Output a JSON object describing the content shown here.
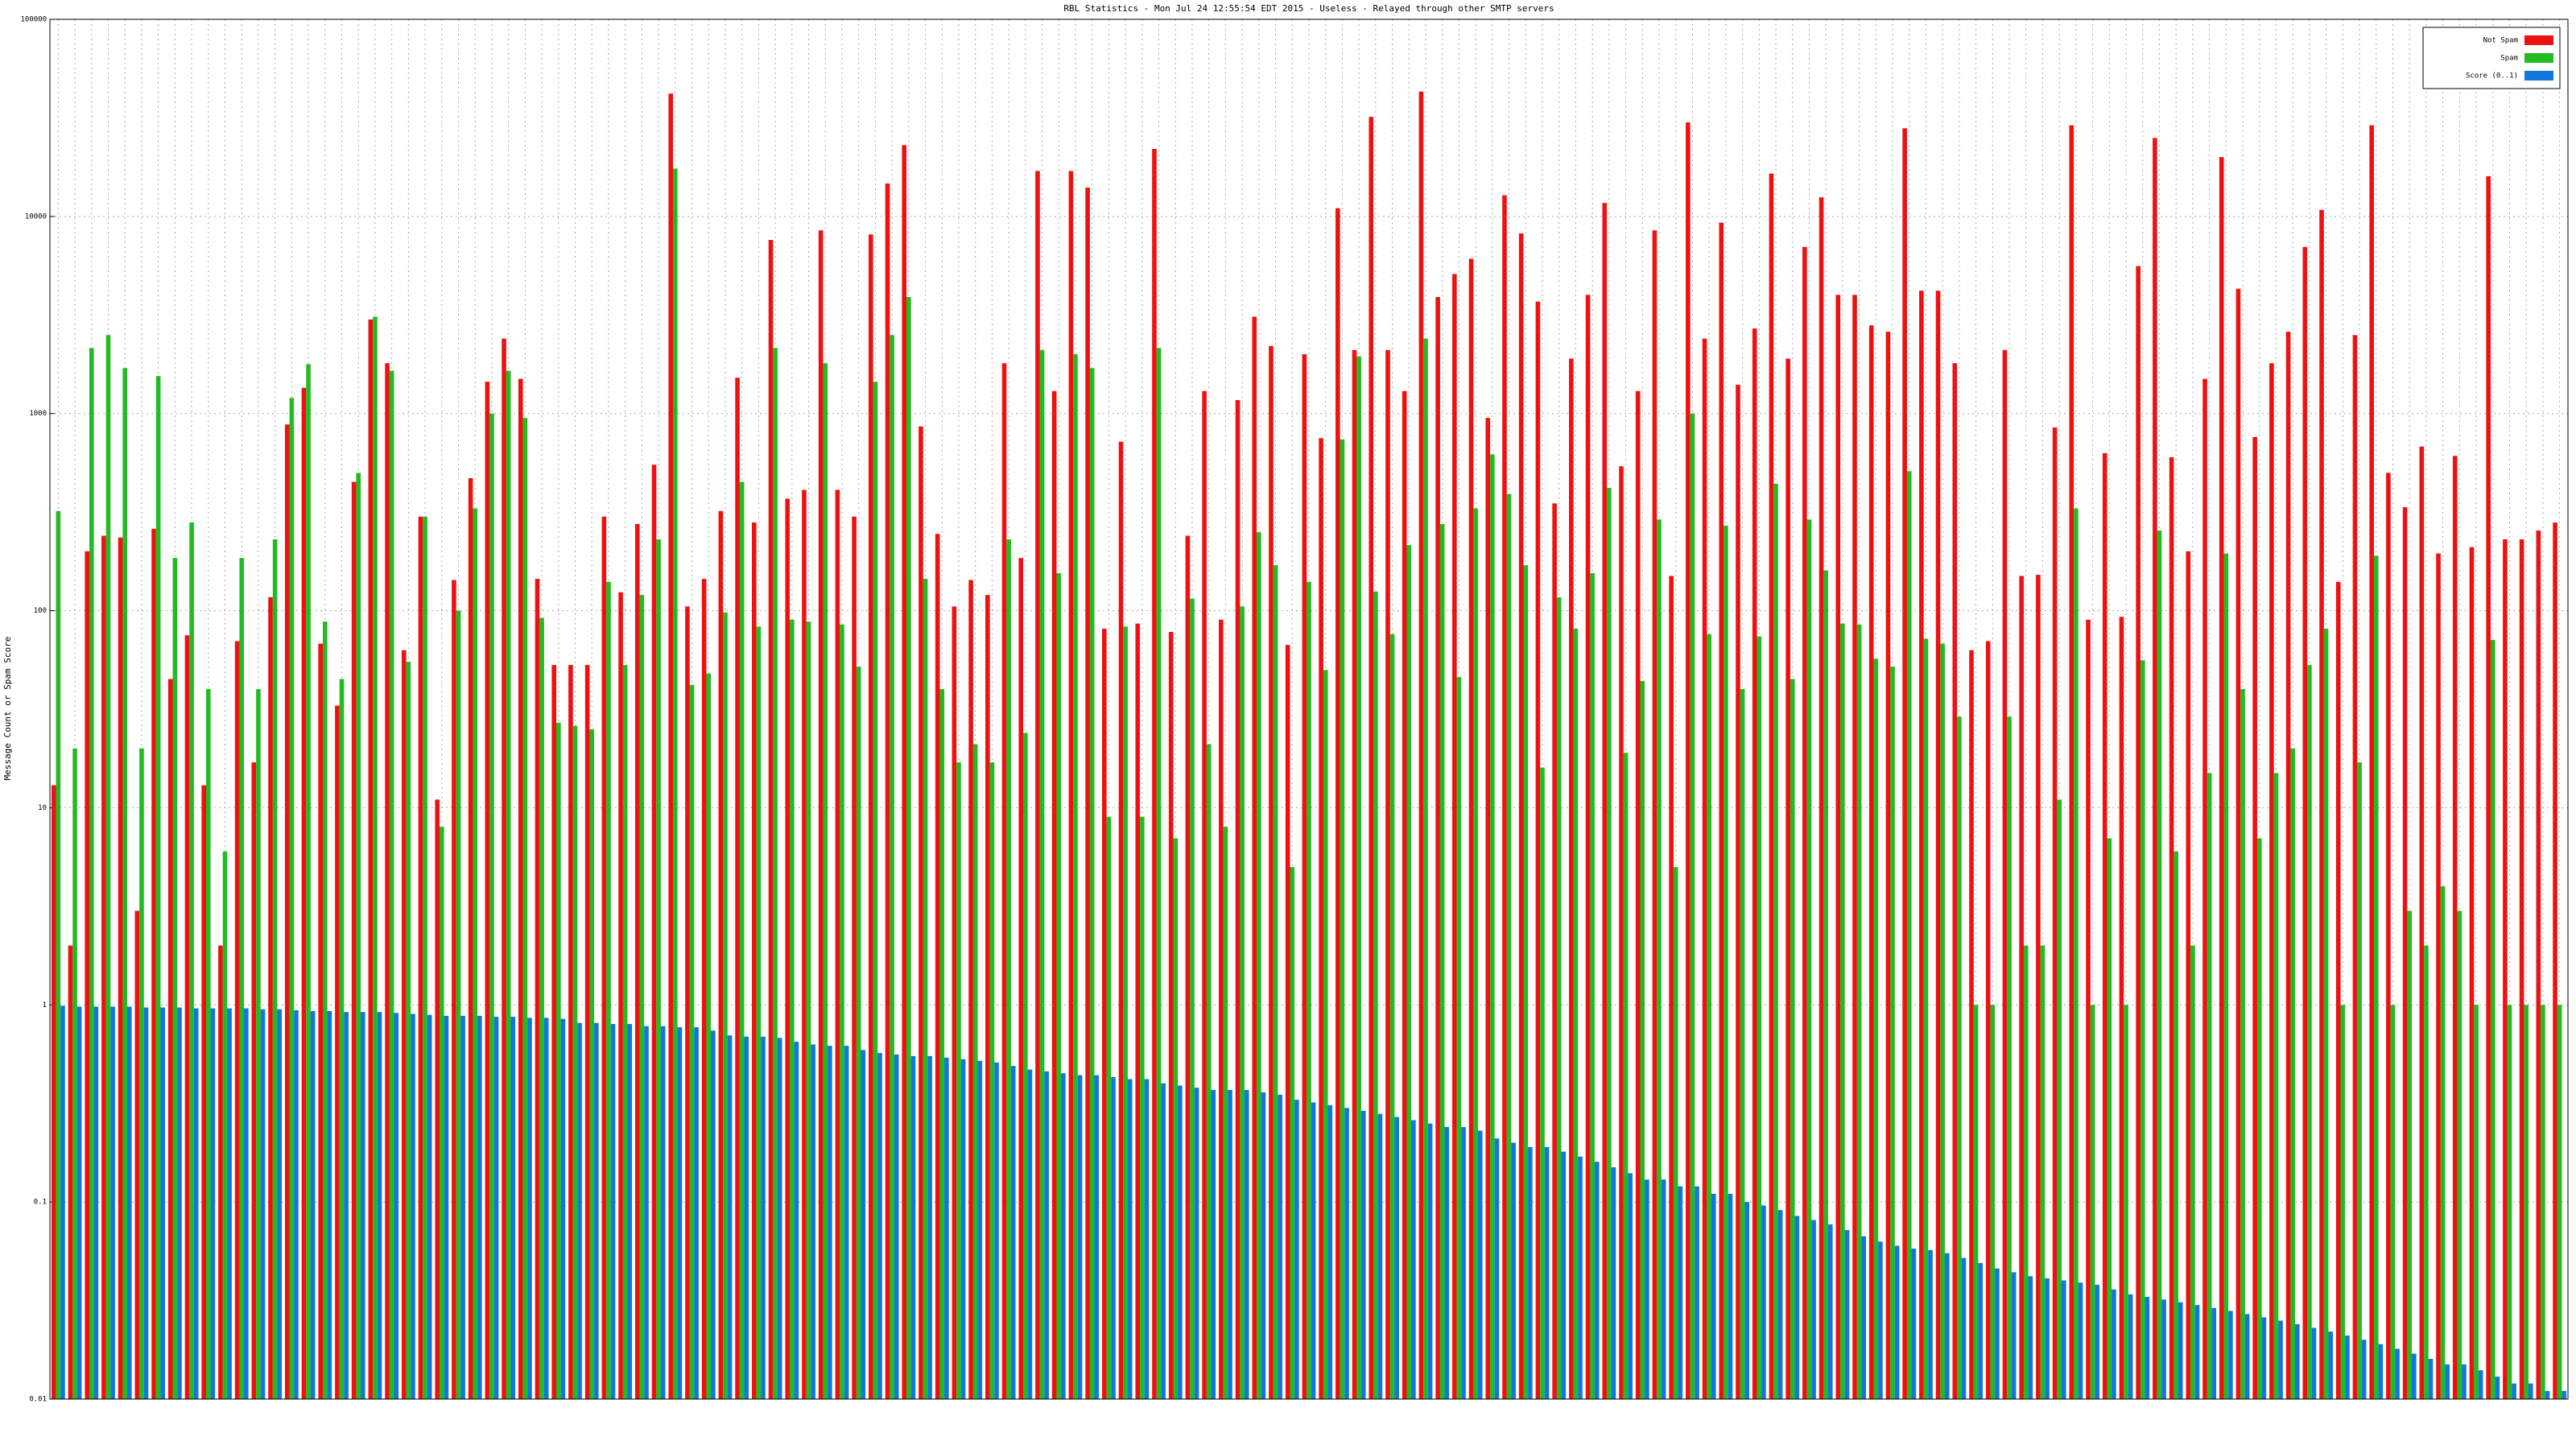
{
  "chart_data": {
    "type": "bar",
    "title": "RBL Statistics - Mon Jul 24 12:55:54 EDT 2015 - Useless - Relayed through other SMTP servers",
    "y_label": "Message Count or Spam Score",
    "log_scale": true,
    "grid": true,
    "legend": "upper right",
    "ylim": [
      0.01,
      100000
    ],
    "yticks": [
      0.01,
      0.1,
      1,
      10,
      100,
      1000,
      10000,
      100000
    ],
    "categories": [
      null,
      null,
      null,
      null,
      null,
      null,
      null,
      null,
      null,
      null,
      null,
      null,
      null,
      null,
      null,
      null,
      null,
      null,
      null,
      null,
      null,
      null,
      null,
      null,
      null,
      null,
      null,
      null,
      null,
      null,
      null,
      null,
      null,
      null,
      null,
      null,
      null,
      null,
      null,
      null,
      null,
      null,
      null,
      null,
      null,
      null,
      null,
      null,
      null,
      null,
      null,
      null,
      null,
      null,
      null,
      null,
      null,
      null,
      null,
      null,
      null,
      null,
      null,
      null,
      null,
      null,
      null,
      null,
      null,
      null,
      null,
      null,
      null,
      null,
      null,
      null,
      null,
      null,
      null,
      null,
      null,
      null,
      null,
      null,
      null,
      null,
      null,
      null,
      null,
      null,
      null,
      null,
      null,
      null,
      null,
      null,
      null,
      null,
      null,
      null,
      null,
      null,
      null,
      null,
      null,
      null,
      null,
      null,
      null,
      null,
      null,
      null,
      null,
      null,
      null,
      null,
      null,
      null,
      null,
      null,
      null,
      null,
      null,
      null,
      null,
      null,
      null,
      null,
      null,
      null,
      null,
      null,
      null,
      null,
      null,
      null,
      null,
      null,
      null,
      null,
      null,
      null,
      null,
      null,
      null,
      null,
      null,
      null,
      null,
      null,
      null
    ],
    "series": [
      {
        "name": "Not Spam",
        "color": "#ee1111",
        "values": [
          13,
          2,
          200,
          240,
          235,
          3,
          260,
          45,
          75,
          13,
          2,
          70,
          17,
          117,
          880,
          1350,
          68,
          33,
          450,
          3000,
          1800,
          63,
          300,
          11,
          143,
          470,
          1450,
          2400,
          1500,
          145,
          53,
          53,
          53,
          300,
          124,
          275,
          550,
          42000,
          105,
          145,
          320,
          1520,
          280,
          7600,
          370,
          410,
          8500,
          410,
          300,
          8100,
          14700,
          23000,
          860,
          245,
          105,
          143,
          120,
          1800,
          185,
          17000,
          1300,
          17000,
          14000,
          81,
          720,
          86,
          22000,
          78,
          240,
          1300,
          90,
          1170,
          3100,
          2200,
          67,
          2000,
          750,
          11000,
          2100,
          32000,
          2100,
          1300,
          43000,
          3900,
          5100,
          6100,
          950,
          12800,
          8200,
          3700,
          350,
          1900,
          4000,
          11700,
          540,
          1300,
          8500,
          150,
          30000,
          2400,
          9300,
          1400,
          2700,
          16500,
          1900,
          7000,
          12500,
          4000,
          4000,
          2800,
          2600,
          28000,
          4200,
          4200,
          1800,
          63,
          70,
          2100,
          150,
          152,
          850,
          29000,
          90,
          630,
          93,
          5600,
          25000,
          600,
          200,
          1500,
          20000,
          4300,
          760,
          1800,
          2600,
          7000,
          10800,
          140,
          2500,
          29000,
          500,
          335,
          680,
          195,
          610,
          210,
          16000,
          230,
          230,
          255,
          280
        ]
      },
      {
        "name": "Spam",
        "color": "#22bb22",
        "values": [
          320,
          20,
          2150,
          2500,
          1700,
          20,
          1550,
          185,
          280,
          40,
          6,
          185,
          40,
          230,
          1200,
          1780,
          88,
          45,
          500,
          3100,
          1650,
          55,
          300,
          8,
          100,
          330,
          1000,
          1650,
          950,
          92,
          27,
          26,
          25,
          140,
          53,
          120,
          230,
          17500,
          42,
          48,
          98,
          450,
          83,
          2150,
          90,
          88,
          1800,
          85,
          52,
          1450,
          2500,
          3900,
          145,
          40,
          17,
          21,
          17,
          230,
          24,
          2100,
          155,
          2000,
          1700,
          9,
          83,
          9,
          2150,
          7,
          115,
          21,
          8,
          105,
          250,
          170,
          5,
          140,
          50,
          740,
          1950,
          125,
          76,
          215,
          2400,
          275,
          46,
          330,
          620,
          390,
          170,
          16,
          117,
          81,
          155,
          420,
          19,
          44,
          290,
          5,
          1000,
          76,
          270,
          40,
          74,
          440,
          45,
          290,
          160,
          86,
          85,
          57,
          52,
          510,
          72,
          68,
          29,
          1,
          1,
          29,
          2,
          2,
          11,
          330,
          1,
          7,
          1,
          56,
          255,
          6,
          2,
          15,
          195,
          40,
          7,
          15,
          20,
          53,
          81,
          1,
          17,
          190,
          1,
          3,
          2,
          4,
          3,
          1,
          71,
          1,
          1,
          1,
          1
        ]
      },
      {
        "name": "Score (0..1)",
        "color": "#1177dd",
        "values": [
          0.99,
          0.98,
          0.98,
          0.98,
          0.98,
          0.97,
          0.97,
          0.97,
          0.96,
          0.96,
          0.96,
          0.96,
          0.95,
          0.95,
          0.94,
          0.93,
          0.93,
          0.92,
          0.92,
          0.92,
          0.91,
          0.9,
          0.89,
          0.88,
          0.88,
          0.88,
          0.87,
          0.87,
          0.86,
          0.86,
          0.85,
          0.81,
          0.81,
          0.8,
          0.8,
          0.78,
          0.78,
          0.77,
          0.77,
          0.74,
          0.7,
          0.69,
          0.69,
          0.68,
          0.65,
          0.63,
          0.62,
          0.62,
          0.59,
          0.57,
          0.56,
          0.55,
          0.55,
          0.54,
          0.53,
          0.52,
          0.51,
          0.49,
          0.47,
          0.46,
          0.45,
          0.44,
          0.44,
          0.43,
          0.42,
          0.42,
          0.4,
          0.39,
          0.38,
          0.37,
          0.37,
          0.37,
          0.36,
          0.35,
          0.33,
          0.32,
          0.31,
          0.3,
          0.29,
          0.28,
          0.27,
          0.26,
          0.25,
          0.24,
          0.24,
          0.23,
          0.21,
          0.2,
          0.19,
          0.19,
          0.18,
          0.17,
          0.16,
          0.15,
          0.14,
          0.13,
          0.13,
          0.12,
          0.12,
          0.11,
          0.11,
          0.1,
          0.096,
          0.091,
          0.085,
          0.081,
          0.077,
          0.072,
          0.067,
          0.063,
          0.06,
          0.058,
          0.057,
          0.055,
          0.052,
          0.049,
          0.046,
          0.044,
          0.042,
          0.041,
          0.04,
          0.039,
          0.038,
          0.036,
          0.034,
          0.033,
          0.032,
          0.031,
          0.03,
          0.029,
          0.028,
          0.027,
          0.026,
          0.025,
          0.024,
          0.023,
          0.022,
          0.021,
          0.02,
          0.019,
          0.018,
          0.017,
          0.016,
          0.015,
          0.015,
          0.014,
          0.013,
          0.012,
          0.012,
          0.011,
          0.011
        ]
      }
    ]
  }
}
